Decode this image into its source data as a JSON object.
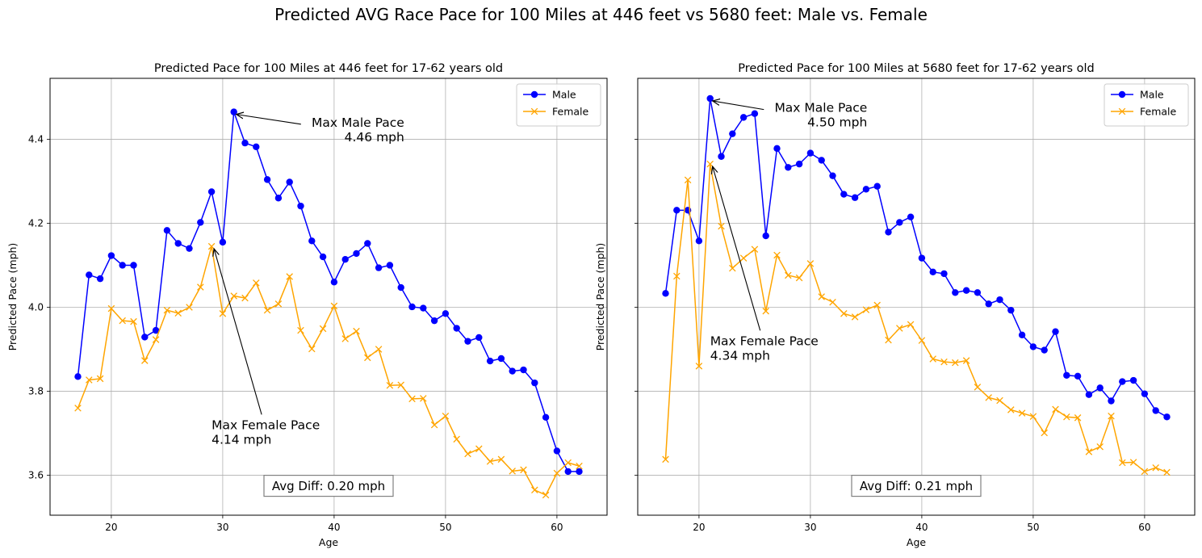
{
  "suptitle": "Predicted AVG Race Pace for 100 Miles at 446 feet vs 5680 feet: Male vs. Female",
  "colors": {
    "male": "#0000ff",
    "female": "#ffa500",
    "grid": "#b0b0b0",
    "box_edge": "#808080"
  },
  "chart_data": [
    {
      "type": "line",
      "title": "Predicted Pace for 100 Miles at 446 feet for 17-62 years old",
      "xlabel": "Age",
      "ylabel": "Predicted Pace (mph)",
      "xlim": [
        14.5,
        64.5
      ],
      "ylim": [
        3.505,
        4.545
      ],
      "xticks": [
        20,
        30,
        40,
        50,
        60
      ],
      "yticks": [
        3.6,
        3.8,
        4.0,
        4.2,
        4.4
      ],
      "grid": true,
      "legend": "top-right",
      "x": [
        17,
        18,
        19,
        20,
        21,
        22,
        23,
        24,
        25,
        26,
        27,
        28,
        29,
        30,
        31,
        32,
        33,
        34,
        35,
        36,
        37,
        38,
        39,
        40,
        41,
        42,
        43,
        44,
        45,
        46,
        47,
        48,
        49,
        50,
        51,
        52,
        53,
        54,
        55,
        56,
        57,
        58,
        59,
        60,
        61,
        62
      ],
      "series": [
        {
          "name": "Male",
          "marker": "o",
          "color": "#0000ff",
          "values": [
            3.835,
            4.077,
            4.068,
            4.123,
            4.1,
            4.1,
            3.929,
            3.945,
            4.183,
            4.152,
            4.14,
            4.202,
            4.275,
            4.155,
            4.465,
            4.391,
            4.382,
            4.304,
            4.26,
            4.298,
            4.241,
            4.158,
            4.12,
            4.06,
            4.114,
            4.128,
            4.152,
            4.094,
            4.1,
            4.047,
            4.001,
            3.998,
            3.968,
            3.985,
            3.95,
            3.919,
            3.928,
            3.872,
            3.878,
            3.848,
            3.851,
            3.82,
            3.738,
            3.658,
            3.609,
            3.609
          ]
        },
        {
          "name": "Female",
          "marker": "x",
          "color": "#ffa500",
          "values": [
            3.76,
            3.827,
            3.83,
            3.997,
            3.968,
            3.966,
            3.873,
            3.923,
            3.993,
            3.986,
            4.0,
            4.048,
            4.145,
            3.985,
            4.027,
            4.022,
            4.058,
            3.993,
            4.008,
            4.073,
            3.945,
            3.901,
            3.949,
            4.003,
            3.925,
            3.943,
            3.88,
            3.9,
            3.814,
            3.815,
            3.782,
            3.783,
            3.72,
            3.741,
            3.686,
            3.651,
            3.663,
            3.633,
            3.638,
            3.61,
            3.613,
            3.565,
            3.553,
            3.605,
            3.63,
            3.622
          ]
        }
      ],
      "annotations": [
        {
          "text": [
            "Max Male Pace",
            "4.46 mph"
          ],
          "align": "right",
          "xy": [
            31,
            4.465
          ],
          "text_xy": [
            46.3,
            4.43
          ]
        },
        {
          "text": [
            "Max Female Pace",
            "4.14 mph"
          ],
          "align": "left",
          "xy": [
            29,
            4.145
          ],
          "text_xy": [
            29,
            3.71
          ]
        }
      ],
      "diff_box": {
        "text": "Avg Diff: 0.20 mph",
        "xy": [
          39.5,
          3.575
        ]
      }
    },
    {
      "type": "line",
      "title": "Predicted Pace for 100 Miles at 5680 feet for 17-62 years old",
      "xlabel": "Age",
      "ylabel": "Predicted Pace (mph)",
      "xlim": [
        14.5,
        64.5
      ],
      "ylim": [
        3.505,
        4.545
      ],
      "xticks": [
        20,
        30,
        40,
        50,
        60
      ],
      "yticks": [
        3.6,
        3.8,
        4.0,
        4.2,
        4.4
      ],
      "grid": true,
      "legend": "top-right",
      "x": [
        17,
        18,
        19,
        20,
        21,
        22,
        23,
        24,
        25,
        26,
        27,
        28,
        29,
        30,
        31,
        32,
        33,
        34,
        35,
        36,
        37,
        38,
        39,
        40,
        41,
        42,
        43,
        44,
        45,
        46,
        47,
        48,
        49,
        50,
        51,
        52,
        53,
        54,
        55,
        56,
        57,
        58,
        59,
        60,
        61,
        62
      ],
      "series": [
        {
          "name": "Male",
          "marker": "o",
          "color": "#0000ff",
          "values": [
            4.033,
            4.231,
            4.231,
            4.158,
            4.497,
            4.359,
            4.413,
            4.452,
            4.461,
            4.17,
            4.378,
            4.333,
            4.341,
            4.367,
            4.35,
            4.313,
            4.269,
            4.261,
            4.281,
            4.288,
            4.179,
            4.202,
            4.215,
            4.117,
            4.084,
            4.08,
            4.035,
            4.04,
            4.035,
            4.008,
            4.018,
            3.993,
            3.934,
            3.906,
            3.898,
            3.942,
            3.838,
            3.836,
            3.792,
            3.808,
            3.777,
            3.823,
            3.826,
            3.794,
            3.754,
            3.739
          ]
        },
        {
          "name": "Female",
          "marker": "x",
          "color": "#ffa500",
          "values": [
            3.638,
            4.074,
            4.303,
            3.86,
            4.341,
            4.193,
            4.093,
            4.117,
            4.138,
            3.991,
            4.124,
            4.076,
            4.07,
            4.104,
            4.025,
            4.012,
            3.985,
            3.977,
            3.994,
            4.005,
            3.922,
            3.95,
            3.959,
            3.921,
            3.877,
            3.87,
            3.868,
            3.873,
            3.81,
            3.785,
            3.778,
            3.756,
            3.748,
            3.74,
            3.701,
            3.757,
            3.739,
            3.737,
            3.656,
            3.668,
            3.741,
            3.63,
            3.631,
            3.609,
            3.618,
            3.607
          ]
        }
      ],
      "annotations": [
        {
          "text": [
            "Max Male Pace",
            "4.50 mph"
          ],
          "align": "right",
          "xy": [
            21,
            4.497
          ],
          "text_xy": [
            35.1,
            4.465
          ]
        },
        {
          "text": [
            "Max Female Pace",
            "4.34 mph"
          ],
          "align": "left",
          "xy": [
            21,
            4.341
          ],
          "text_xy": [
            21,
            3.91
          ]
        }
      ],
      "diff_box": {
        "text": "Avg Diff: 0.21 mph",
        "xy": [
          39.5,
          3.575
        ]
      }
    }
  ]
}
